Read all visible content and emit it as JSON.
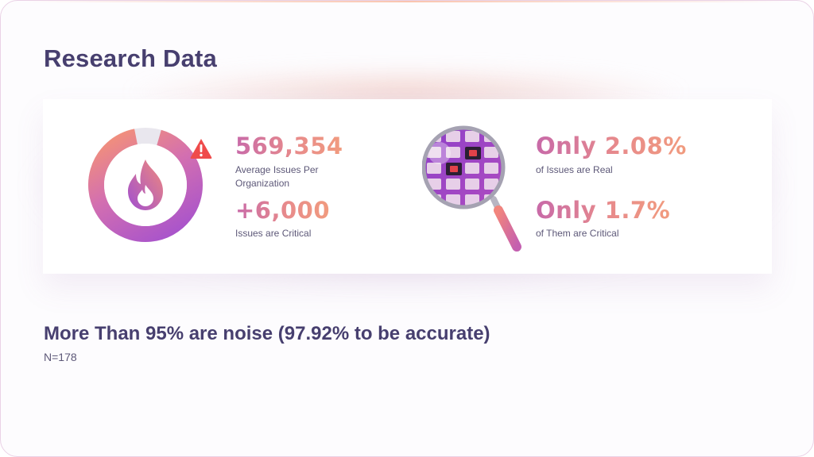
{
  "slide": {
    "title": "Research Data"
  },
  "stats": {
    "left": {
      "primary_value": "569,354",
      "primary_label": "Average Issues Per Organization",
      "secondary_value": "+6,000",
      "secondary_label": "Issues are Critical"
    },
    "right": {
      "primary_value": "Only 2.08%",
      "primary_label": "of Issues are Real",
      "secondary_value": "Only 1.7%",
      "secondary_label": "of Them are Critical"
    }
  },
  "footer": {
    "headline": "More Than 95% are noise (97.92% to be accurate)",
    "note": "N=178"
  },
  "icons": {
    "donut": "fire-gauge-icon",
    "alert": "alert-icon",
    "magnifier": "magnifying-glass-icon"
  },
  "colors": {
    "title": "#473f6f",
    "accent_start": "#a14fd0",
    "accent_end": "#f89670",
    "alert": "#ef4b4b"
  }
}
